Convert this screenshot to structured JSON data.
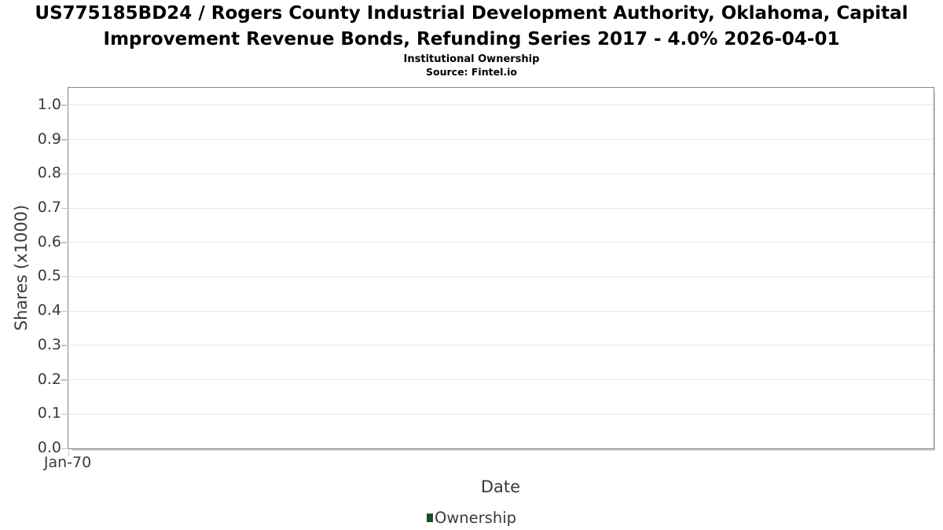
{
  "header": {
    "title": "US775185BD24 / Rogers County Industrial Development Authority, Oklahoma, Capital Improvement Revenue Bonds, Refunding Series 2017 - 4.0% 2026-04-01",
    "subtitle": "Institutional Ownership",
    "source": "Source: Fintel.io"
  },
  "chart_data": {
    "type": "line",
    "title": "US775185BD24 / Rogers County Industrial Development Authority, Oklahoma, Capital Improvement Revenue Bonds, Refunding Series 2017 - 4.0% 2026-04-01",
    "subtitle": "Institutional Ownership",
    "source": "Source: Fintel.io",
    "xlabel": "Date",
    "ylabel": "Shares (x1000)",
    "ylim": [
      0,
      1.05
    ],
    "grid": true,
    "legend_position": "bottom-center",
    "y_ticks": [
      {
        "label": "0.0",
        "value": 0.0
      },
      {
        "label": "0.1",
        "value": 0.1
      },
      {
        "label": "0.2",
        "value": 0.2
      },
      {
        "label": "0.3",
        "value": 0.3
      },
      {
        "label": "0.4",
        "value": 0.4
      },
      {
        "label": "0.5",
        "value": 0.5
      },
      {
        "label": "0.6",
        "value": 0.6
      },
      {
        "label": "0.7",
        "value": 0.7
      },
      {
        "label": "0.8",
        "value": 0.8
      },
      {
        "label": "0.9",
        "value": 0.9
      },
      {
        "label": "1.0",
        "value": 1.0
      }
    ],
    "x_ticks": [
      {
        "label": "Jan-70",
        "position": 0
      }
    ],
    "series": [
      {
        "name": "Ownership",
        "color": "#1e4d2b",
        "x": [],
        "values": []
      }
    ]
  },
  "colors": {
    "legend_swatch": "#1e4d2b",
    "axis_text": "#3a3a3a",
    "gridline": "#e8e8e8",
    "frame_border": "#868686",
    "tick_mark": "#c2c2c2",
    "frame_shadow": "#cdcdcd",
    "title_text": "#000000"
  }
}
